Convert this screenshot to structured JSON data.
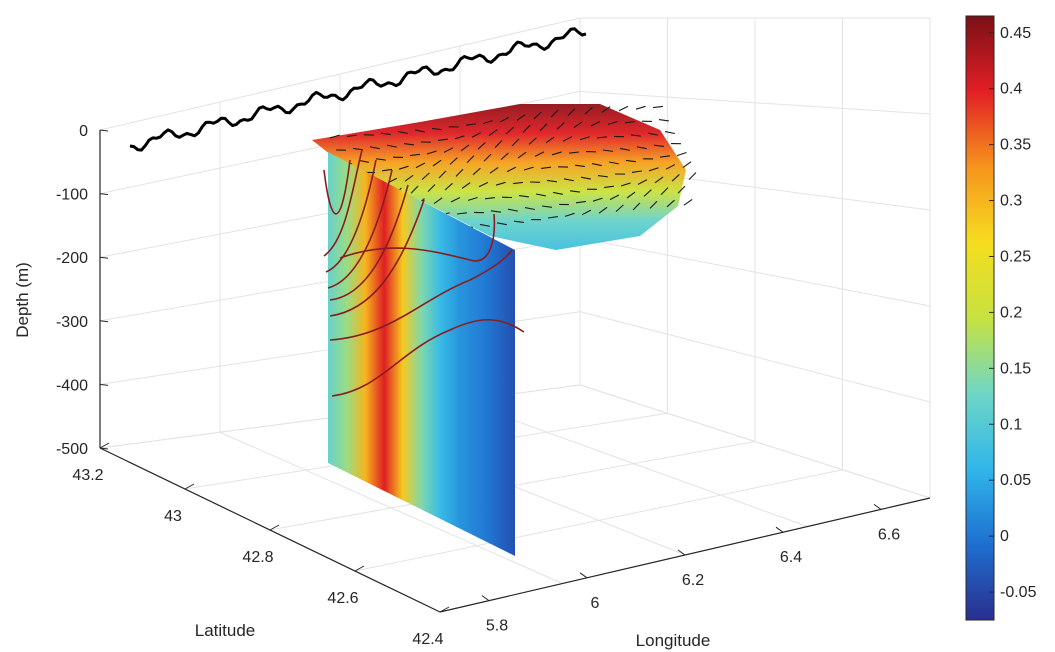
{
  "chart_data": {
    "type": "3d-section",
    "title": "",
    "axes": {
      "z": {
        "label": "Depth (m)",
        "ticks": [
          "0",
          "-100",
          "-200",
          "-300",
          "-400",
          "-500"
        ],
        "values": [
          0,
          -100,
          -200,
          -300,
          -400,
          -500
        ],
        "range": [
          -500,
          0
        ]
      },
      "latitude": {
        "label": "Latitude",
        "ticks": [
          "43.2",
          "43",
          "42.8",
          "42.6",
          "42.4"
        ],
        "values": [
          43.2,
          43.0,
          42.8,
          42.6,
          42.4
        ],
        "range": [
          42.4,
          43.2
        ]
      },
      "longitude": {
        "label": "Longitude",
        "ticks": [
          "5.8",
          "6",
          "6.2",
          "6.4",
          "6.6"
        ],
        "values": [
          5.8,
          6.0,
          6.2,
          6.4,
          6.6
        ],
        "range": [
          5.7,
          6.7
        ]
      }
    },
    "colorbar": {
      "ticks": [
        "0.45",
        "0.4",
        "0.35",
        "0.3",
        "0.25",
        "0.2",
        "0.15",
        "0.1",
        "0.05",
        "0",
        "-0.05"
      ],
      "values": [
        0.45,
        0.4,
        0.35,
        0.3,
        0.25,
        0.2,
        0.15,
        0.1,
        0.05,
        0,
        -0.05
      ],
      "range": [
        -0.075,
        0.465
      ],
      "colormap": "parula-jet",
      "colors": [
        "#2a2f8f",
        "#1f6fd0",
        "#30b6ea",
        "#6fd6c6",
        "#c7e23f",
        "#f5dd1e",
        "#f6941d",
        "#e31f25",
        "#7a1017"
      ]
    },
    "vertical_section": {
      "depth_range": [
        -500,
        -80
      ],
      "profile": [
        {
          "position": 0.0,
          "value": 0.12
        },
        {
          "position": 0.1,
          "value": 0.16
        },
        {
          "position": 0.2,
          "value": 0.3
        },
        {
          "position": 0.3,
          "value": 0.4
        },
        {
          "position": 0.4,
          "value": 0.28
        },
        {
          "position": 0.5,
          "value": 0.14
        },
        {
          "position": 0.6,
          "value": 0.07
        },
        {
          "position": 0.7,
          "value": 0.03
        },
        {
          "position": 0.85,
          "value": 0.0
        },
        {
          "position": 1.0,
          "value": -0.04
        }
      ],
      "contour_color": "#8b1c1c"
    },
    "surface_layer": {
      "depth": 0,
      "description_values": "surface velocity field with arrows",
      "value_band": [
        0.45,
        0.4,
        0.32,
        0.2,
        0.12,
        0.08
      ]
    },
    "coastline_color": "#000000",
    "grid": true
  }
}
